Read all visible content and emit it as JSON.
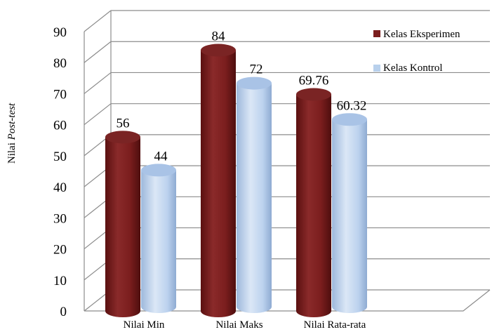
{
  "chart_data": {
    "type": "bar",
    "ylabel_prefix": "Nilai",
    "ylabel_emphasis": "Post-test",
    "categories": [
      "Nilai Min",
      "Nilai Maks",
      "Nilai Rata-rata"
    ],
    "series": [
      {
        "name": "Kelas Eksperimen",
        "values": [
          56,
          84,
          69.76
        ],
        "labels": [
          "56",
          "84",
          "69.76"
        ],
        "color": "#7b1e1e"
      },
      {
        "name": "Kelas Kontrol",
        "values": [
          44,
          72,
          60.32
        ],
        "labels": [
          "44",
          "72",
          "60.32"
        ],
        "color": "#b8d0ec"
      }
    ],
    "yticks": [
      "0",
      "10",
      "20",
      "30",
      "40",
      "50",
      "60",
      "70",
      "80",
      "90"
    ],
    "ylim": [
      0,
      90
    ],
    "grid": true,
    "legend": "top-right",
    "style": "3d-cylinder"
  }
}
